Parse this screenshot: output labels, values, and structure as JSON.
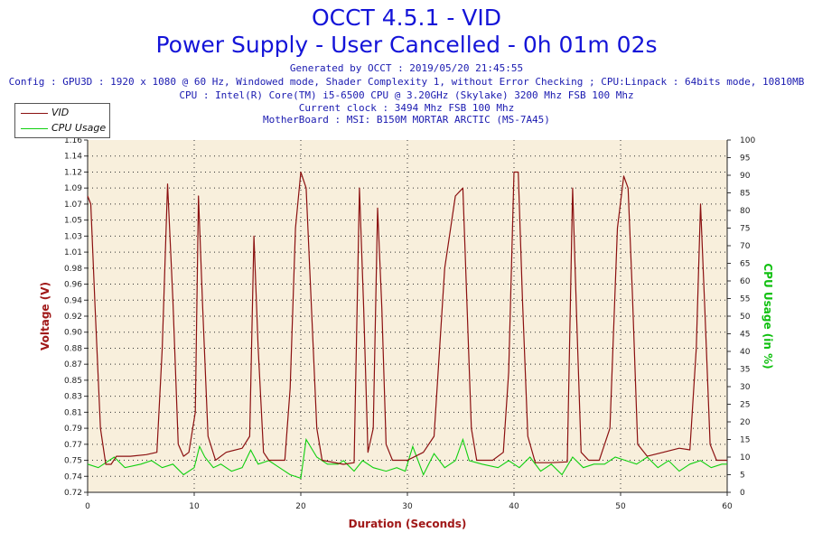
{
  "header": {
    "title": "OCCT 4.5.1 - VID",
    "subtitle": "Power Supply - User Cancelled - 0h 01m 02s",
    "generated": "Generated by OCCT : 2019/05/20 21:45:55",
    "config": "Config : GPU3D : 1920 x 1080 @ 60 Hz, Windowed mode, Shader Complexity 1, without Error Checking ; CPU:Linpack : 64bits mode, 10810MB",
    "cpu": "CPU : Intel(R) Core(TM) i5-6500 CPU @ 3.20GHz (Skylake) 3200 Mhz FSB 100 Mhz",
    "clock": "Current clock : 3494 Mhz FSB 100 Mhz",
    "motherboard": "MotherBoard : MSI: B150M MORTAR ARCTIC (MS-7A45)"
  },
  "colors": {
    "vid": "#8b1010",
    "cpu": "#10d010",
    "title": "#1414d8",
    "plot_bg": "#f8efdc"
  },
  "chart_data": {
    "type": "line",
    "xlabel": "Duration (Seconds)",
    "ylabel": "Voltage (V)",
    "y2label": "CPU Usage (in %)",
    "xlim": [
      0,
      60
    ],
    "ylim": [
      0.72,
      1.16
    ],
    "y2lim": [
      0,
      100
    ],
    "x_ticks": [
      "0",
      "10",
      "20",
      "30",
      "40",
      "50",
      "60"
    ],
    "y_ticks": [
      "0.72",
      "0.74",
      "0.75",
      "0.77",
      "0.79",
      "0.81",
      "0.83",
      "0.85",
      "0.87",
      "0.88",
      "0.90",
      "0.92",
      "0.94",
      "0.96",
      "0.98",
      "1.01",
      "1.03",
      "1.05",
      "1.07",
      "1.09",
      "1.12",
      "1.14",
      "1.16"
    ],
    "y2_ticks": [
      "0",
      "5",
      "10",
      "15",
      "20",
      "25",
      "30",
      "35",
      "40",
      "45",
      "50",
      "55",
      "60",
      "65",
      "70",
      "75",
      "80",
      "85",
      "90",
      "95",
      "100"
    ],
    "grid": true,
    "legend": "top-left",
    "series": [
      {
        "name": "VID",
        "axis": "left",
        "points": [
          [
            0,
            1.09
          ],
          [
            0.3,
            1.08
          ],
          [
            0.7,
            0.95
          ],
          [
            1.2,
            0.8
          ],
          [
            1.7,
            0.755
          ],
          [
            2.2,
            0.755
          ],
          [
            2.7,
            0.765
          ],
          [
            4,
            0.765
          ],
          [
            5.5,
            0.767
          ],
          [
            6.5,
            0.77
          ],
          [
            7,
            0.9
          ],
          [
            7.5,
            1.105
          ],
          [
            8,
            0.96
          ],
          [
            8.5,
            0.78
          ],
          [
            9,
            0.765
          ],
          [
            9.5,
            0.77
          ],
          [
            10.1,
            0.82
          ],
          [
            10.4,
            1.09
          ],
          [
            10.8,
            0.95
          ],
          [
            11.3,
            0.79
          ],
          [
            12,
            0.76
          ],
          [
            13,
            0.77
          ],
          [
            14.5,
            0.775
          ],
          [
            15.2,
            0.79
          ],
          [
            15.6,
            1.04
          ],
          [
            16,
            0.9
          ],
          [
            16.5,
            0.77
          ],
          [
            17,
            0.76
          ],
          [
            18.5,
            0.76
          ],
          [
            19,
            0.85
          ],
          [
            19.5,
            1.05
          ],
          [
            20,
            1.12
          ],
          [
            20.5,
            1.1
          ],
          [
            21,
            0.95
          ],
          [
            21.5,
            0.8
          ],
          [
            22,
            0.76
          ],
          [
            24,
            0.755
          ],
          [
            25,
            0.757
          ],
          [
            25.5,
            1.1
          ],
          [
            25.9,
            0.95
          ],
          [
            26.3,
            0.77
          ],
          [
            26.8,
            0.8
          ],
          [
            27.2,
            1.075
          ],
          [
            27.6,
            0.95
          ],
          [
            28,
            0.78
          ],
          [
            28.6,
            0.76
          ],
          [
            30,
            0.76
          ],
          [
            31.5,
            0.77
          ],
          [
            32.5,
            0.79
          ],
          [
            33.5,
            1.0
          ],
          [
            34.5,
            1.09
          ],
          [
            35.2,
            1.1
          ],
          [
            35.6,
            0.95
          ],
          [
            36,
            0.8
          ],
          [
            36.5,
            0.76
          ],
          [
            38,
            0.76
          ],
          [
            39,
            0.77
          ],
          [
            39.5,
            0.87
          ],
          [
            40,
            1.12
          ],
          [
            40.4,
            1.12
          ],
          [
            40.8,
            0.96
          ],
          [
            41.3,
            0.79
          ],
          [
            42,
            0.757
          ],
          [
            43.5,
            0.757
          ],
          [
            45,
            0.758
          ],
          [
            45.5,
            1.1
          ],
          [
            45.9,
            0.93
          ],
          [
            46.3,
            0.77
          ],
          [
            47,
            0.76
          ],
          [
            48,
            0.76
          ],
          [
            49,
            0.8
          ],
          [
            49.7,
            1.05
          ],
          [
            50.3,
            1.115
          ],
          [
            50.7,
            1.1
          ],
          [
            51.1,
            0.97
          ],
          [
            51.6,
            0.78
          ],
          [
            52.5,
            0.765
          ],
          [
            54,
            0.77
          ],
          [
            55.5,
            0.775
          ],
          [
            56.5,
            0.773
          ],
          [
            57.1,
            0.9
          ],
          [
            57.5,
            1.08
          ],
          [
            57.9,
            0.95
          ],
          [
            58.4,
            0.78
          ],
          [
            59,
            0.76
          ],
          [
            60,
            0.76
          ]
        ]
      },
      {
        "name": "CPU Usage",
        "axis": "right",
        "points": [
          [
            0,
            8
          ],
          [
            1,
            7
          ],
          [
            2.5,
            10
          ],
          [
            3.5,
            7
          ],
          [
            5,
            8
          ],
          [
            6,
            9
          ],
          [
            7,
            7
          ],
          [
            8,
            8
          ],
          [
            9,
            5
          ],
          [
            10,
            7
          ],
          [
            10.5,
            13
          ],
          [
            11,
            10
          ],
          [
            11.8,
            7
          ],
          [
            12.5,
            8
          ],
          [
            13.5,
            6
          ],
          [
            14.5,
            7
          ],
          [
            15.3,
            12
          ],
          [
            16,
            8
          ],
          [
            17,
            9
          ],
          [
            18,
            7
          ],
          [
            19,
            5
          ],
          [
            20,
            4
          ],
          [
            20.5,
            15
          ],
          [
            21.5,
            10
          ],
          [
            22.5,
            8
          ],
          [
            23.5,
            8
          ],
          [
            24,
            9
          ],
          [
            25,
            6
          ],
          [
            25.8,
            9
          ],
          [
            26.8,
            7
          ],
          [
            28,
            6
          ],
          [
            29,
            7
          ],
          [
            29.8,
            6
          ],
          [
            30.5,
            13
          ],
          [
            31.5,
            5
          ],
          [
            32.5,
            11
          ],
          [
            33.5,
            7
          ],
          [
            34.5,
            9
          ],
          [
            35.2,
            15
          ],
          [
            35.8,
            9
          ],
          [
            37,
            8
          ],
          [
            38.5,
            7
          ],
          [
            39.5,
            9
          ],
          [
            40.5,
            7
          ],
          [
            41.5,
            10
          ],
          [
            42.5,
            6
          ],
          [
            43.5,
            8
          ],
          [
            44.5,
            5
          ],
          [
            45.5,
            10
          ],
          [
            46.5,
            7
          ],
          [
            47.5,
            8
          ],
          [
            48.5,
            8
          ],
          [
            49.5,
            10
          ],
          [
            50.5,
            9
          ],
          [
            51.5,
            8
          ],
          [
            52.5,
            10
          ],
          [
            53.5,
            7
          ],
          [
            54.5,
            9
          ],
          [
            55.5,
            6
          ],
          [
            56.5,
            8
          ],
          [
            57.5,
            9
          ],
          [
            58.5,
            7
          ],
          [
            59.5,
            8
          ],
          [
            60,
            8
          ]
        ]
      }
    ]
  }
}
